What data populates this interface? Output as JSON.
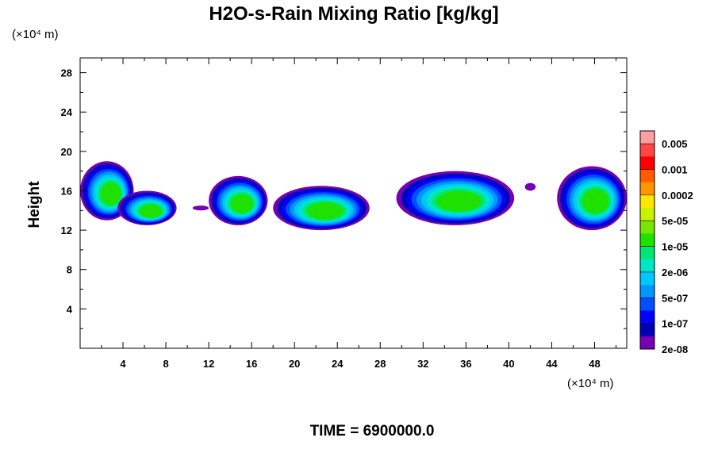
{
  "chart_data": {
    "type": "heatmap",
    "title": "H2O-s-Rain Mixing Ratio [kg/kg]",
    "ylabel": "Height",
    "x_unit": "(×10⁴ m)",
    "y_unit": "(×10⁴ m)",
    "x_ticks": [
      4,
      8,
      12,
      16,
      20,
      24,
      28,
      32,
      36,
      40,
      44,
      48
    ],
    "y_ticks": [
      4,
      8,
      12,
      16,
      20,
      24,
      28
    ],
    "xlim": [
      0,
      51
    ],
    "ylim": [
      0,
      29.5
    ],
    "colorbar": {
      "labels": [
        "0.005",
        "0.001",
        "0.0002",
        "5e-05",
        "1e-05",
        "2e-06",
        "5e-07",
        "1e-07",
        "2e-08"
      ],
      "colors_top_to_bottom": [
        "#ffa0a0",
        "#ff4646",
        "#ff0000",
        "#ff5a00",
        "#ff9600",
        "#ffe600",
        "#c8f000",
        "#78e600",
        "#1ee100",
        "#00e678",
        "#00e6c8",
        "#00c8ff",
        "#0096ff",
        "#0050ff",
        "#0000ff",
        "#0000b4",
        "#7800b4"
      ]
    },
    "clouds": [
      {
        "x": [
          0,
          5
        ],
        "y": [
          13,
          19
        ],
        "peak": "1e-05"
      },
      {
        "x": [
          3.5,
          9
        ],
        "y": [
          12.5,
          16
        ],
        "peak": "1e-05"
      },
      {
        "x": [
          10.5,
          12
        ],
        "y": [
          14,
          14.5
        ],
        "peak": "2e-08"
      },
      {
        "x": [
          12,
          17.5
        ],
        "y": [
          12.5,
          17.5
        ],
        "peak": "1e-05"
      },
      {
        "x": [
          18,
          27
        ],
        "y": [
          12,
          16.5
        ],
        "peak": "1e-05"
      },
      {
        "x": [
          29.5,
          40.5
        ],
        "y": [
          12.5,
          18
        ],
        "peak": "1e-05"
      },
      {
        "x": [
          41.5,
          42.5
        ],
        "y": [
          16,
          16.8
        ],
        "peak": "2e-08"
      },
      {
        "x": [
          44.5,
          51
        ],
        "y": [
          12,
          18.5
        ],
        "peak": "1e-05"
      }
    ]
  },
  "footer": {
    "time_label": "TIME = 6900000.0"
  }
}
